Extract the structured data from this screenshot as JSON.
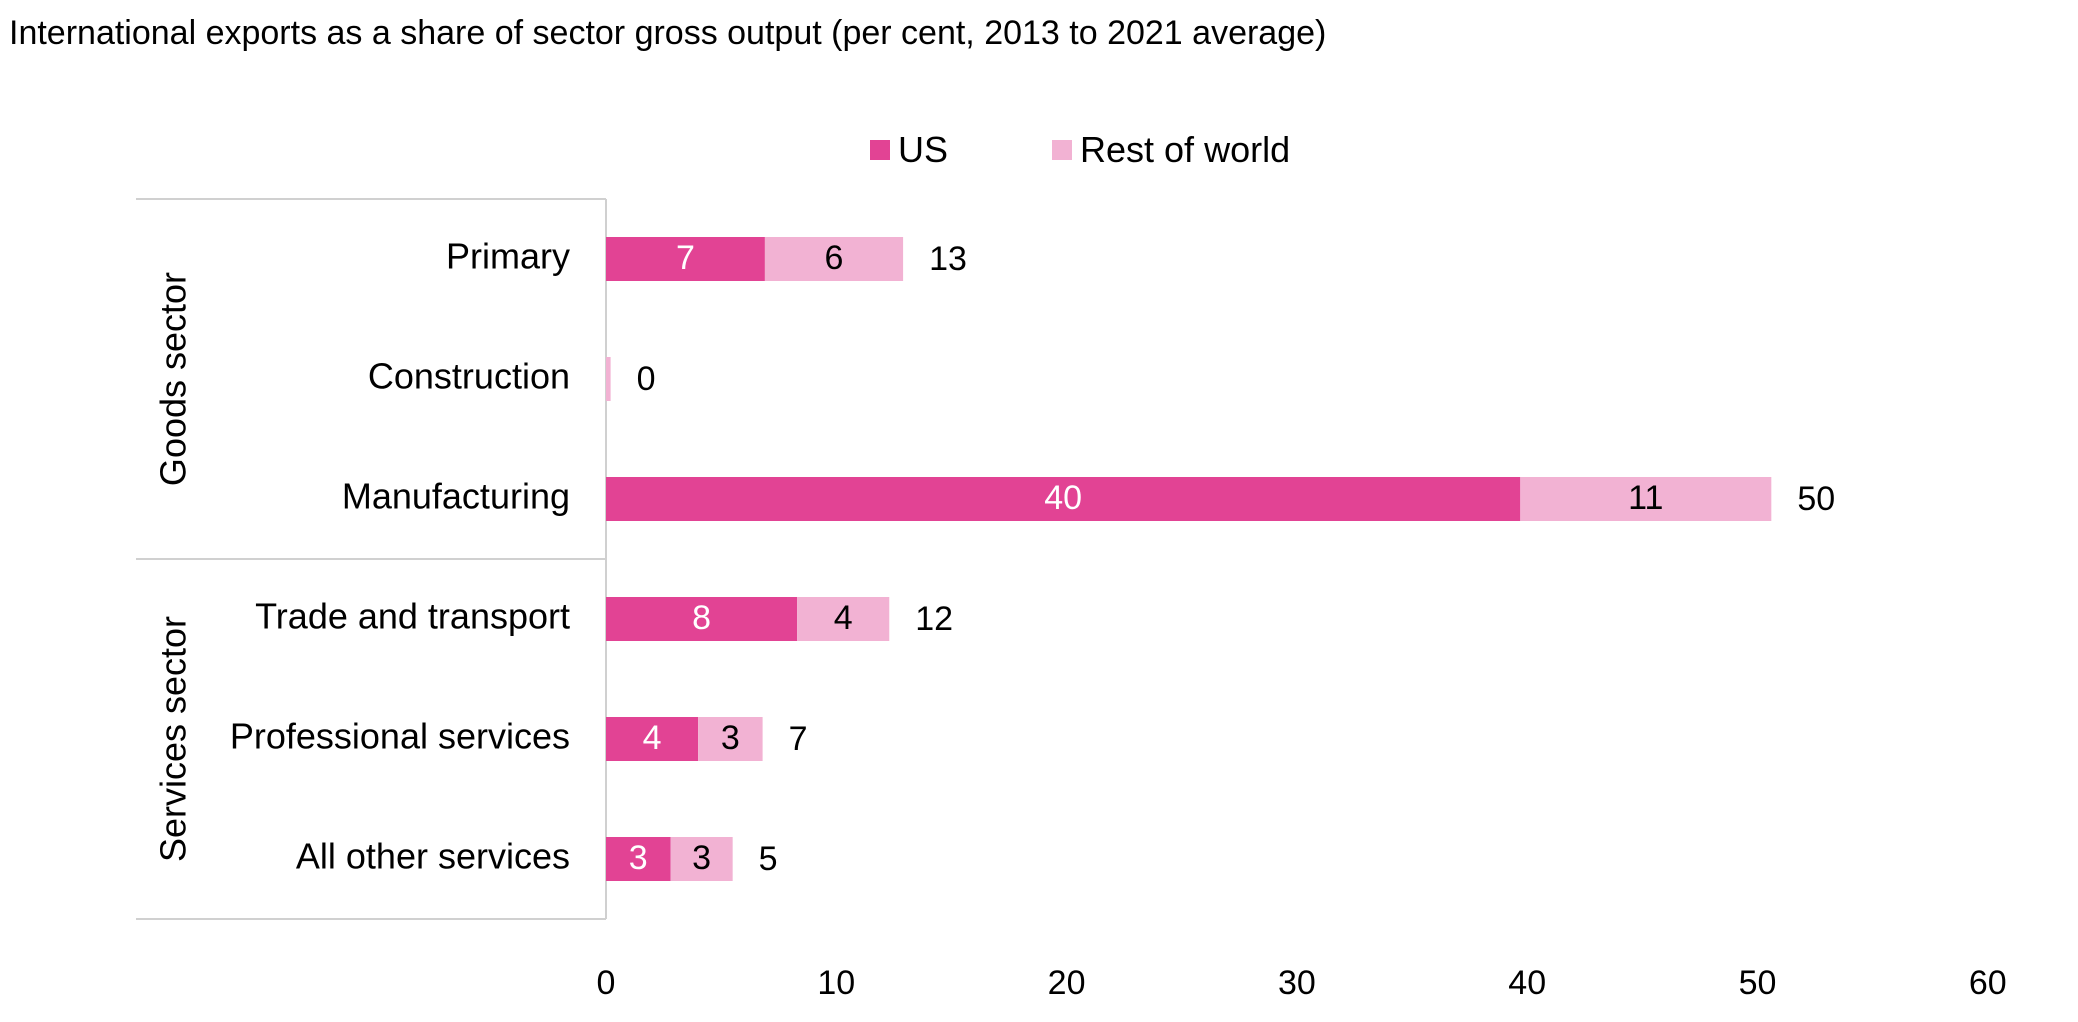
{
  "chart_data": {
    "type": "bar",
    "orientation": "horizontal",
    "stacked": true,
    "title": "International exports as a share of sector gross output (per cent, 2013 to 2021 average)",
    "groups": [
      {
        "label": "Goods sector",
        "categories": [
          "Primary",
          "Construction",
          "Manufacturing"
        ]
      },
      {
        "label": "Services sector",
        "categories": [
          "Trade and transport",
          "Professional services",
          "All other services"
        ]
      }
    ],
    "categories": [
      "Primary",
      "Construction",
      "Manufacturing",
      "Trade and transport",
      "Professional services",
      "All other services"
    ],
    "series": [
      {
        "name": "US",
        "color": "#e24394",
        "label_color": "#ffffff",
        "values": [
          6.9,
          0.0,
          39.7,
          8.3,
          4.0,
          2.8
        ],
        "labels": [
          "7",
          "",
          "40",
          "8",
          "4",
          "3"
        ]
      },
      {
        "name": "Rest of world",
        "color": "#f2b2d3",
        "label_color": "#000000",
        "values": [
          6.0,
          0.2,
          10.9,
          4.0,
          2.8,
          2.7
        ],
        "labels": [
          "6",
          "",
          "11",
          "4",
          "3",
          "3"
        ]
      }
    ],
    "totals": [
      "13",
      "0",
      "50",
      "12",
      "7",
      "5"
    ],
    "xlim": [
      0,
      60
    ],
    "xticks": [
      0,
      10,
      20,
      30,
      40,
      50,
      60
    ],
    "grid": false,
    "legend_position": "top"
  }
}
